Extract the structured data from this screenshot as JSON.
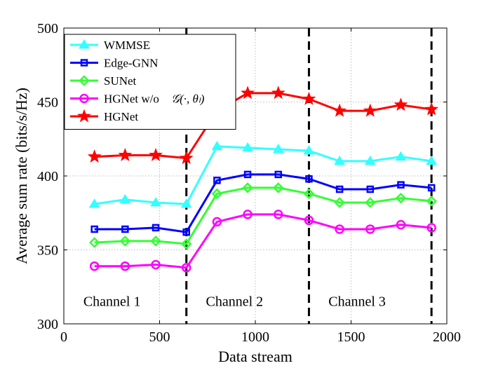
{
  "chart_data": {
    "type": "line",
    "xlabel": "Data stream",
    "ylabel": "Average sum rate (bits/s/Hz)",
    "xlim": [
      0,
      2000
    ],
    "ylim": [
      300,
      500
    ],
    "xticks": [
      0,
      500,
      1000,
      1500,
      2000
    ],
    "yticks": [
      300,
      350,
      400,
      450,
      500
    ],
    "grid": true,
    "legend_position": "top-left",
    "x": [
      160,
      320,
      480,
      640,
      800,
      960,
      1120,
      1280,
      1440,
      1600,
      1760,
      1920
    ],
    "series": [
      {
        "name": "WMMSE",
        "color": "#33ffff",
        "marker": "triangle",
        "values": [
          381,
          384,
          382,
          381,
          420,
          419,
          418,
          417,
          410,
          410,
          413,
          410
        ]
      },
      {
        "name": "Edge-GNN",
        "color": "#0000ff",
        "marker": "square",
        "values": [
          364,
          364,
          365,
          362,
          397,
          401,
          401,
          398,
          391,
          391,
          394,
          392
        ]
      },
      {
        "name": "SUNet",
        "color": "#33ff33",
        "marker": "diamond",
        "values": [
          355,
          356,
          356,
          354,
          388,
          392,
          392,
          388,
          382,
          382,
          385,
          383
        ]
      },
      {
        "name": "HGNet w/o",
        "name_math": "𝒢(·, θₗ)",
        "color": "#ff00ff",
        "marker": "circle",
        "values": [
          339,
          339,
          340,
          338,
          369,
          374,
          374,
          370,
          364,
          364,
          367,
          365
        ]
      },
      {
        "name": "HGNet",
        "color": "#ff0000",
        "marker": "star",
        "values": [
          413,
          414,
          414,
          412,
          444,
          456,
          456,
          452,
          444,
          444,
          448,
          445
        ]
      }
    ],
    "vlines": [
      640,
      1280,
      1920
    ],
    "annotations": [
      {
        "text": "Channel 1",
        "x": 340,
        "y": 315
      },
      {
        "text": "Channel 2",
        "x": 980,
        "y": 315
      },
      {
        "text": "Channel 3",
        "x": 1620,
        "y": 315
      }
    ]
  }
}
